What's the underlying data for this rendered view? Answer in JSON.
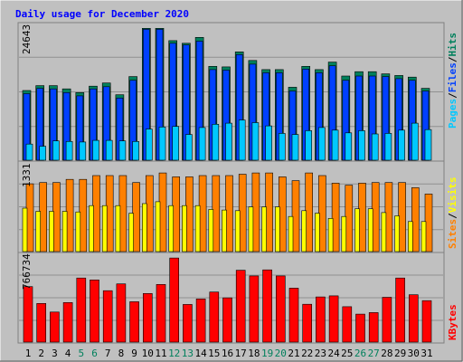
{
  "title": "Daily usage for December 2020",
  "colors": {
    "background": "#c0c0c0",
    "panel": "#c0c0c0",
    "title": "#0000ff",
    "hits": "#00805c",
    "files": "#0040ff",
    "pages": "#00c8ff",
    "sites": "#ff8000",
    "visits": "#ffff00",
    "kbytes": "#ff0000",
    "weekend_label": "#00805c"
  },
  "legend": {
    "pages": "Pages",
    "files": "Files",
    "hits": "Hits",
    "sites": "Sites",
    "visits": "Visits",
    "kbytes": "KBytes",
    "sep": "/"
  },
  "chart_data": [
    {
      "type": "bar",
      "title": "Daily usage for December 2020",
      "ylabel_max": "24643",
      "ylim": [
        0,
        24643
      ],
      "categories": [
        "1",
        "2",
        "3",
        "4",
        "5",
        "6",
        "7",
        "8",
        "9",
        "10",
        "11",
        "12",
        "13",
        "14",
        "15",
        "16",
        "17",
        "18",
        "19",
        "20",
        "21",
        "22",
        "23",
        "24",
        "25",
        "26",
        "27",
        "28",
        "29",
        "30",
        "31"
      ],
      "weekend_days": [
        "5",
        "6",
        "12",
        "13",
        "19",
        "20",
        "26",
        "27"
      ],
      "series": [
        {
          "name": "Hits",
          "values": [
            13000,
            13900,
            13900,
            13300,
            12600,
            13800,
            14400,
            12200,
            15600,
            24600,
            24600,
            22300,
            21800,
            22900,
            17500,
            17400,
            20200,
            18600,
            16900,
            16900,
            13600,
            17500,
            16900,
            18300,
            15700,
            16500,
            16500,
            16100,
            15800,
            15500,
            13400
          ]
        },
        {
          "name": "Files",
          "values": [
            12400,
            13400,
            13300,
            12600,
            12000,
            13300,
            13700,
            11600,
            14900,
            24400,
            24400,
            21800,
            21500,
            22200,
            16900,
            16800,
            19700,
            17900,
            16300,
            16300,
            12900,
            17000,
            16300,
            17600,
            14900,
            15700,
            15700,
            15600,
            15200,
            14900,
            12900
          ]
        },
        {
          "name": "Pages",
          "values": [
            3000,
            2600,
            3600,
            3500,
            3400,
            3700,
            3700,
            3600,
            3500,
            5800,
            6200,
            6300,
            4800,
            6100,
            6700,
            6900,
            7500,
            7000,
            6400,
            5000,
            4800,
            5500,
            6100,
            5600,
            5100,
            5500,
            4900,
            5000,
            5600,
            6900,
            5700
          ]
        }
      ]
    },
    {
      "type": "bar",
      "ylabel_max": "1331",
      "ylim": [
        0,
        1331
      ],
      "categories": [
        "1",
        "2",
        "3",
        "4",
        "5",
        "6",
        "7",
        "8",
        "9",
        "10",
        "11",
        "12",
        "13",
        "14",
        "15",
        "16",
        "17",
        "18",
        "19",
        "20",
        "21",
        "22",
        "23",
        "24",
        "25",
        "26",
        "27",
        "28",
        "29",
        "30",
        "31"
      ],
      "series": [
        {
          "name": "Sites",
          "values": [
            1060,
            1080,
            1080,
            1130,
            1130,
            1190,
            1190,
            1190,
            1080,
            1190,
            1230,
            1170,
            1170,
            1190,
            1190,
            1190,
            1210,
            1230,
            1230,
            1170,
            1110,
            1230,
            1190,
            1070,
            1040,
            1070,
            1080,
            1080,
            1080,
            1000,
            900
          ]
        },
        {
          "name": "Visits",
          "values": [
            680,
            630,
            630,
            630,
            620,
            720,
            720,
            720,
            600,
            750,
            780,
            720,
            720,
            720,
            660,
            650,
            640,
            700,
            700,
            700,
            550,
            640,
            600,
            520,
            550,
            670,
            670,
            610,
            560,
            470,
            470
          ]
        }
      ]
    },
    {
      "type": "bar",
      "ylabel_max": "766734",
      "ylim": [
        0,
        766734
      ],
      "categories": [
        "1",
        "2",
        "3",
        "4",
        "5",
        "6",
        "7",
        "8",
        "9",
        "10",
        "11",
        "12",
        "13",
        "14",
        "15",
        "16",
        "17",
        "18",
        "19",
        "20",
        "21",
        "22",
        "23",
        "24",
        "25",
        "26",
        "27",
        "28",
        "29",
        "30",
        "31"
      ],
      "series": [
        {
          "name": "KBytes",
          "values": [
            505000,
            352000,
            274000,
            360000,
            584000,
            566000,
            468000,
            530000,
            368000,
            443000,
            525000,
            766000,
            343000,
            393000,
            456000,
            403000,
            655000,
            603000,
            658000,
            603000,
            491000,
            345000,
            411000,
            421000,
            322000,
            255000,
            269000,
            408000,
            584000,
            431000,
            378000
          ]
        }
      ]
    }
  ]
}
